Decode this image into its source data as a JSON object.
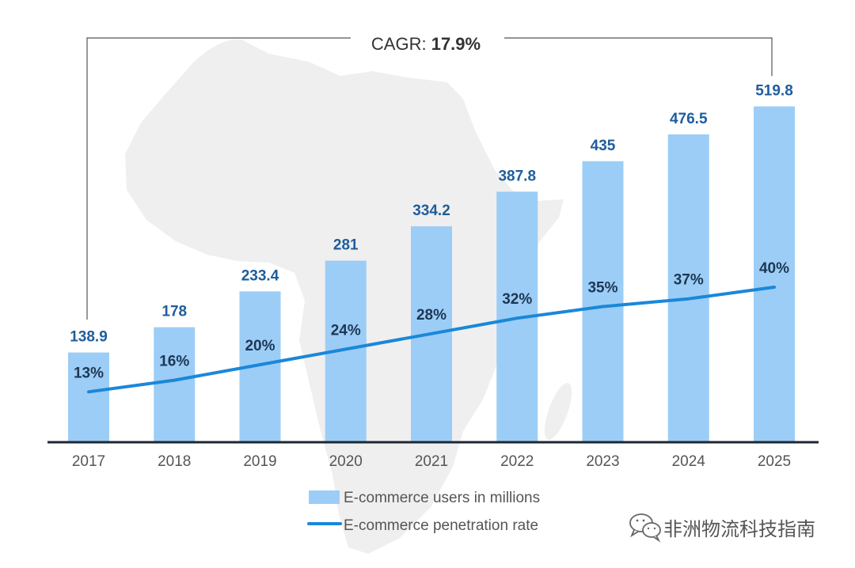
{
  "colors": {
    "bar": "#9ccdf6",
    "line": "#1b87d9",
    "bar_value_label": "#1e5d9c",
    "rate_label": "#1c3755",
    "map": "#efefef",
    "axis": "#1d2733",
    "bracket": "#555555"
  },
  "chart_data": {
    "type": "bar",
    "categories": [
      "2017",
      "2018",
      "2019",
      "2020",
      "2021",
      "2022",
      "2023",
      "2024",
      "2025"
    ],
    "series": [
      {
        "name": "E-commerce users in millions",
        "type": "bar",
        "values": [
          138.9,
          178,
          233.4,
          281,
          334.2,
          387.8,
          435,
          476.5,
          519.8
        ]
      },
      {
        "name": "E-commerce penetration rate",
        "type": "line",
        "unit": "%",
        "values": [
          13,
          16,
          20,
          24,
          28,
          32,
          35,
          37,
          40
        ]
      }
    ],
    "annotation": {
      "label": "CAGR:",
      "value": "17.9%"
    },
    "legend_position": "bottom",
    "grid": false
  },
  "watermark": {
    "text": "非洲物流科技指南",
    "icon": "wechat-icon"
  }
}
